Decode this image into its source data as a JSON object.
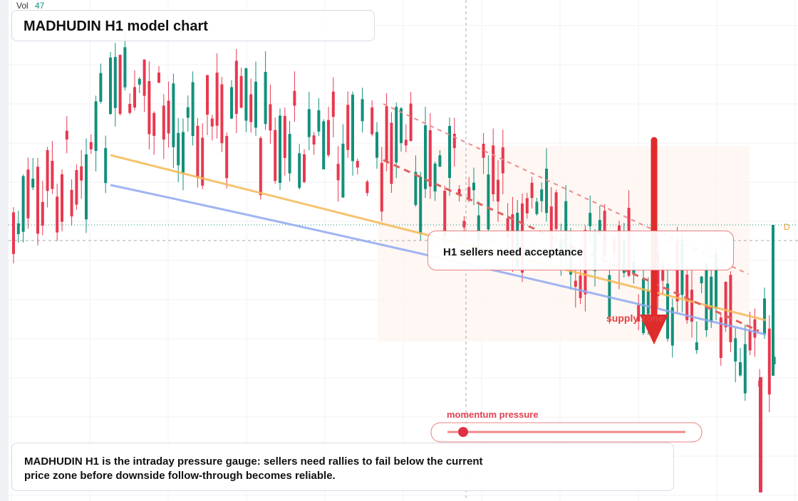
{
  "header": {
    "vol_label": "Vol",
    "vol_value": 47,
    "title": "MADHUDIN H1 model chart"
  },
  "annotations": {
    "callout": "H1 sellers need acceptance",
    "supply": "supply zone",
    "gauge_label": "momentum pressure",
    "marker": "D"
  },
  "footer": {
    "text": "MADHUDIN H1 is the intraday pressure gauge: sellers need rallies to fail below the current price zone before downside follow-through becomes reliable."
  }
}
